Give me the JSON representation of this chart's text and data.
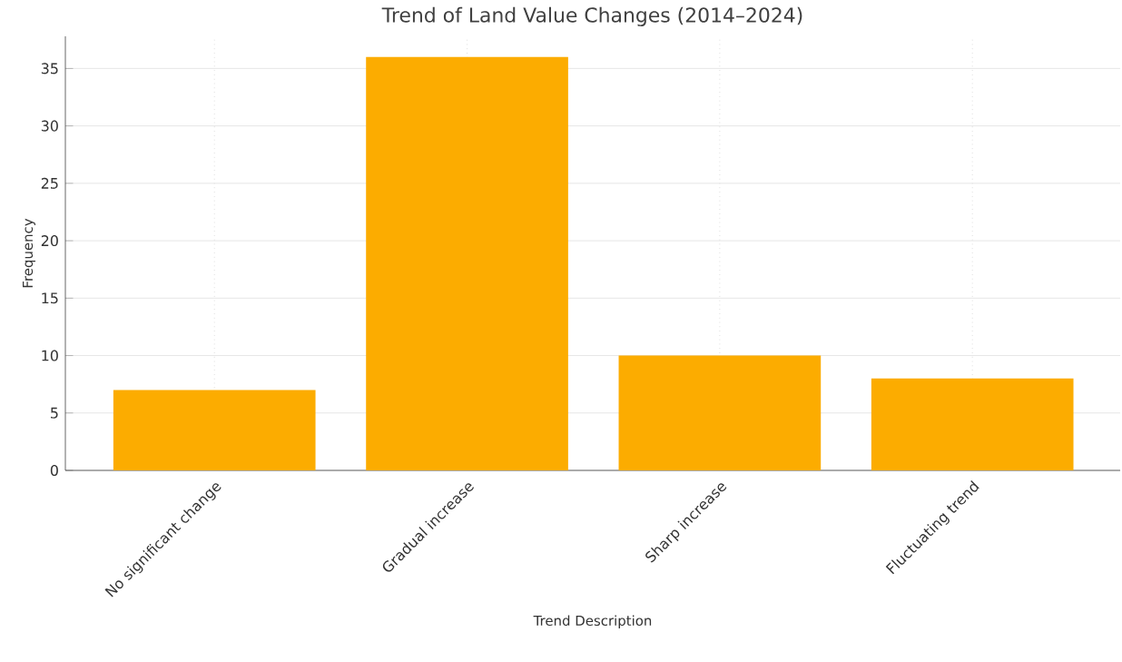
{
  "chart_data": {
    "type": "bar",
    "title": "Trend of Land Value Changes (2014–2024)",
    "xlabel": "Trend Description",
    "ylabel": "Frequency",
    "categories": [
      "No significant change",
      "Gradual increase",
      "Sharp increase",
      "Fluctuating trend"
    ],
    "values": [
      7,
      36,
      10,
      8
    ],
    "color": "#fcac00",
    "ylim": [
      0,
      37.8
    ],
    "yticks": [
      0,
      5,
      10,
      15,
      20,
      25,
      30,
      35
    ],
    "grid": true
  }
}
